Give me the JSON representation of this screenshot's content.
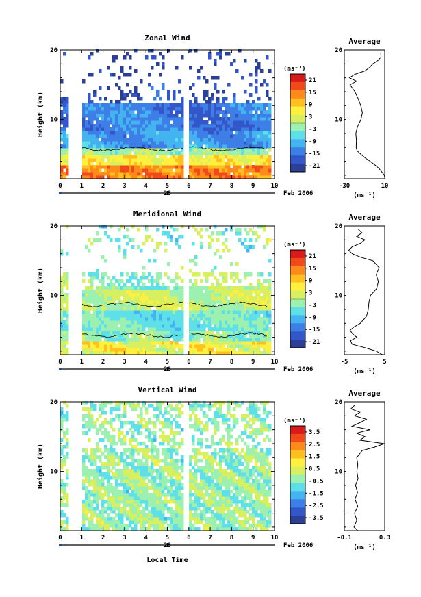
{
  "figure": {
    "x_axis_label": "Local Time",
    "date_label": "Feb 2006",
    "day_marker_label": "28"
  },
  "chart_data": [
    {
      "type": "heatmap",
      "title": "Zonal Wind",
      "ylabel": "Height (km)",
      "xlim": [
        0,
        10
      ],
      "ylim": [
        1.5,
        20
      ],
      "x_ticks": [
        "0",
        "1",
        "2",
        "3",
        "4",
        "5",
        "6",
        "7",
        "8",
        "9",
        "10"
      ],
      "y_ticks": [
        10,
        20
      ],
      "colorbar": {
        "unit": "(ms⁻¹)",
        "levels": [
          21,
          15,
          9,
          3,
          -3,
          -9,
          -15,
          -21
        ],
        "min": -24,
        "max": 24,
        "zero_contour": true
      },
      "data_gap": [
        5.75,
        5.95
      ],
      "profile": {
        "title": "Average",
        "xlabel": "(ms⁻¹)",
        "x_ticks": [
          "-30",
          "10"
        ],
        "xlim": [
          -30,
          10
        ],
        "height_km": [
          1.5,
          2,
          2.5,
          3,
          3.5,
          4,
          4.5,
          5,
          5.5,
          6,
          7,
          8,
          9,
          10,
          11,
          12,
          13,
          14,
          15,
          15.5,
          16,
          16.5,
          17,
          17.5,
          18,
          18.5,
          19,
          19.5
        ],
        "values": [
          10,
          9,
          7,
          4,
          0,
          -4,
          -9,
          -14,
          -17,
          -18,
          -18,
          -19,
          -17,
          -14,
          -12,
          -14,
          -16,
          -20,
          -24,
          -18,
          -25,
          -20,
          -10,
          -5,
          -2,
          3,
          6,
          6
        ]
      }
    },
    {
      "type": "heatmap",
      "title": "Meridional Wind",
      "ylabel": "Height (km)",
      "xlim": [
        0,
        10
      ],
      "ylim": [
        1.5,
        20
      ],
      "x_ticks": [
        "0",
        "1",
        "2",
        "3",
        "4",
        "5",
        "6",
        "7",
        "8",
        "9",
        "10"
      ],
      "y_ticks": [
        10,
        20
      ],
      "colorbar": {
        "unit": "(ms⁻¹)",
        "levels": [
          21,
          15,
          9,
          3,
          -3,
          -9,
          -15,
          -21
        ],
        "min": -24,
        "max": 24,
        "zero_contour": true
      },
      "data_gap": [
        5.75,
        5.95
      ],
      "profile": {
        "title": "Average",
        "xlabel": "(ms⁻¹)",
        "x_ticks": [
          "-5",
          "5"
        ],
        "xlim": [
          -5,
          5
        ],
        "height_km": [
          1.5,
          2,
          2.5,
          3,
          3.5,
          4,
          4.5,
          5,
          5.5,
          6,
          7,
          8,
          9,
          10,
          11,
          12,
          13,
          14,
          15,
          15.5,
          16,
          16.5,
          17,
          17.5,
          18,
          18.5,
          19,
          19.5
        ],
        "values": [
          4.5,
          3,
          0,
          -3,
          -3.5,
          -2,
          -3,
          -3.5,
          -2.5,
          -1,
          0.5,
          1,
          1,
          1.5,
          3,
          3.5,
          3,
          3.5,
          2,
          -1,
          -3,
          -4,
          -3,
          -1,
          0,
          -2,
          -0.5,
          -1.5
        ]
      }
    },
    {
      "type": "heatmap",
      "title": "Vertical Wind",
      "ylabel": "Height (km)",
      "xlim": [
        0,
        10
      ],
      "ylim": [
        1.5,
        20
      ],
      "x_ticks": [
        "0",
        "1",
        "2",
        "3",
        "4",
        "5",
        "6",
        "7",
        "8",
        "9",
        "10"
      ],
      "y_ticks": [
        10,
        20
      ],
      "colorbar": {
        "unit": "(ms⁻¹)",
        "levels": [
          3.5,
          2.5,
          1.5,
          0.5,
          -0.5,
          -1.5,
          -2.5,
          -3.5
        ],
        "min": -4,
        "max": 4,
        "zero_contour": false
      },
      "data_gap": [
        5.75,
        5.95
      ],
      "profile": {
        "title": "Average",
        "xlabel": "(ms⁻¹)",
        "x_ticks": [
          "-0.1",
          "0.3"
        ],
        "xlim": [
          -0.1,
          0.3
        ],
        "height_km": [
          1.5,
          2,
          3,
          4,
          5,
          6,
          7,
          8,
          9,
          10,
          11,
          12,
          13,
          13.5,
          14,
          14.5,
          15,
          15.5,
          16,
          16.5,
          17,
          17.5,
          18,
          18.5,
          19,
          19.5
        ],
        "values": [
          0.03,
          0.0,
          0.02,
          0.0,
          0.03,
          0.01,
          0.03,
          0.01,
          0.04,
          0.02,
          0.03,
          0.02,
          0.08,
          0.2,
          0.3,
          0.05,
          0.1,
          0.02,
          0.15,
          -0.02,
          0.05,
          0.12,
          0.0,
          0.05,
          -0.03,
          0.0
        ]
      }
    }
  ]
}
